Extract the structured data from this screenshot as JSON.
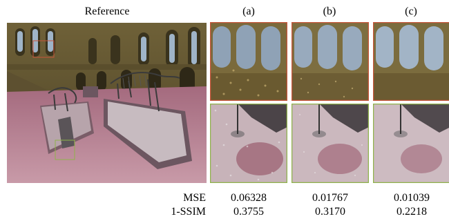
{
  "figure": {
    "reference_label": "Reference",
    "column_labels": [
      "(a)",
      "(b)",
      "(c)"
    ],
    "crop_top_border_color": "#c8553a",
    "crop_bottom_border_color": "#8fb34a",
    "metrics": [
      {
        "name": "MSE",
        "values": [
          "0.06328",
          "0.01767",
          "0.01039"
        ]
      },
      {
        "name": "1-SSIM",
        "values": [
          "0.3755",
          "0.3170",
          "0.2218"
        ]
      }
    ]
  }
}
